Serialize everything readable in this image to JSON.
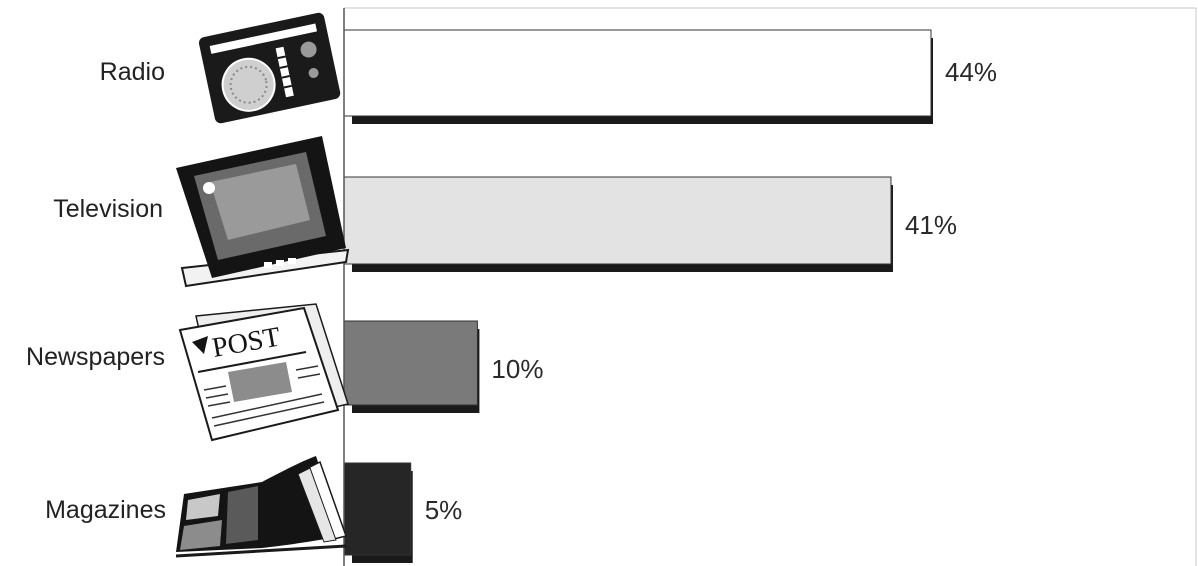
{
  "chart_data": {
    "type": "bar",
    "orientation": "horizontal",
    "categories": [
      "Radio",
      "Television",
      "Newspapers",
      "Magazines"
    ],
    "values": [
      44,
      41,
      10,
      5
    ],
    "value_labels": [
      "44%",
      "41%",
      "10%",
      "5%"
    ],
    "unit": "%",
    "title": "",
    "xlabel": "",
    "ylabel": "",
    "xlim": [
      0,
      70
    ],
    "grid": false,
    "legend": "none",
    "bar_colors": [
      "#ffffff",
      "#e3e3e3",
      "#7a7a7a",
      "#262626"
    ],
    "shadow_color": "#1a1a1a",
    "icons": [
      "radio-icon",
      "television-icon",
      "newspaper-icon",
      "magazine-icon"
    ],
    "icon_text": {
      "newspaper": "POST"
    }
  }
}
